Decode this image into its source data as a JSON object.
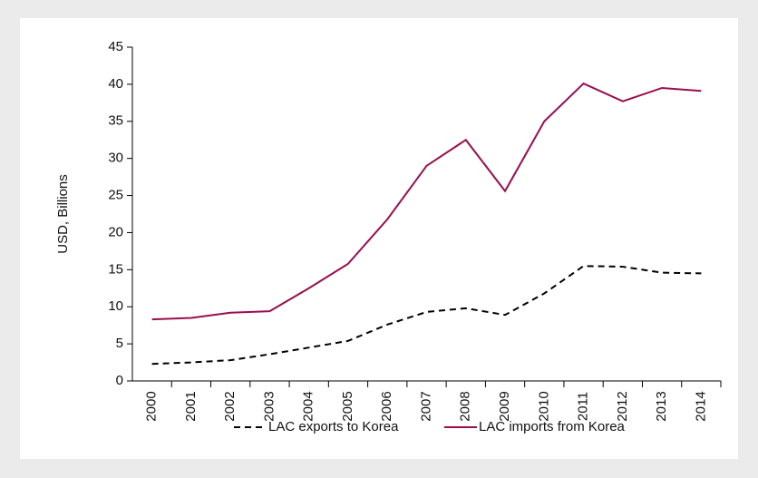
{
  "chart_data": {
    "type": "line",
    "y_label": "USD, Billions",
    "categories": [
      "2000",
      "2001",
      "2002",
      "2003",
      "2004",
      "2005",
      "2006",
      "2007",
      "2008",
      "2009",
      "2010",
      "2011",
      "2012",
      "2013",
      "2014"
    ],
    "series": [
      {
        "name": "LAC exports to Korea",
        "color": "#000000",
        "dashed": true,
        "values": [
          2.3,
          2.5,
          2.8,
          3.6,
          4.5,
          5.4,
          7.6,
          9.3,
          9.8,
          8.9,
          11.8,
          15.5,
          15.4,
          14.6,
          14.5
        ]
      },
      {
        "name": "LAC imports from Korea",
        "color": "#9b0d4f",
        "dashed": false,
        "values": [
          8.3,
          8.5,
          9.2,
          9.4,
          12.5,
          15.8,
          21.8,
          29,
          32.5,
          25.6,
          35,
          40.1,
          37.7,
          39.5,
          39.1
        ]
      }
    ],
    "ylim": [
      0,
      45
    ],
    "yticks": [
      0,
      5,
      10,
      15,
      20,
      25,
      30,
      35,
      40,
      45
    ],
    "legend": "bottom"
  }
}
